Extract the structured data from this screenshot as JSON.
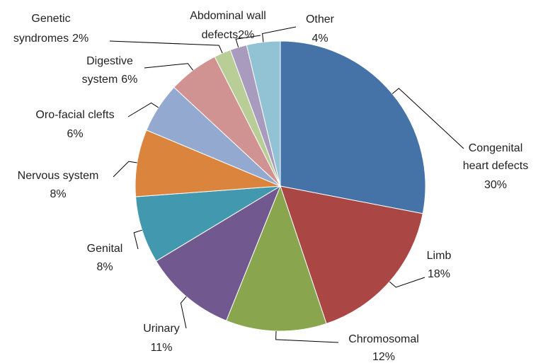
{
  "chart_data": {
    "type": "pie",
    "categories": [
      "Congenital heart defects",
      "Limb",
      "Chromosomal",
      "Urinary",
      "Genital",
      "Nervous system",
      "Oro-facial clefts",
      "Digestive system",
      "Genetic syndromes",
      "Abdominal wall defects",
      "Other"
    ],
    "values": [
      30,
      18,
      12,
      11,
      8,
      8,
      6,
      6,
      2,
      2,
      4
    ],
    "value_labels": [
      "30%",
      "18%",
      "12%",
      "11%",
      "8%",
      "8%",
      "6%",
      "6%",
      "2%",
      "2%",
      "4%"
    ],
    "colors": [
      "#4572a7",
      "#aa4643",
      "#89a54e",
      "#71588f",
      "#4198af",
      "#db843d",
      "#93a9cf",
      "#d19392",
      "#b9cd96",
      "#a99bbd",
      "#92c3d5"
    ]
  }
}
